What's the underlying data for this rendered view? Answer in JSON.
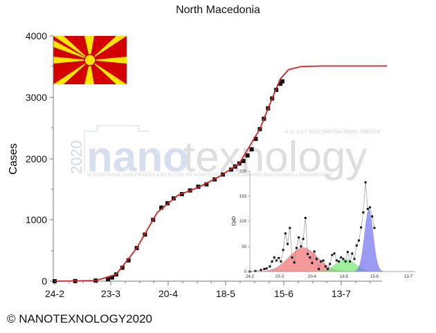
{
  "chart_data": [
    {
      "type": "line",
      "title": "North Macedonia",
      "xlabel": "",
      "ylabel": "Cases",
      "ylim": [
        0,
        4000
      ],
      "x_ticks": [
        "24-2",
        "23-3",
        "20-4",
        "18-5",
        "15-6",
        "13-7"
      ],
      "y_ticks": [
        0,
        1000,
        2000,
        3000,
        4000
      ],
      "grid": false,
      "series": [
        {
          "name": "Observed cumulative cases",
          "style": "black square markers",
          "x_day": [
            0,
            10,
            20,
            26,
            28,
            30,
            33,
            36,
            40,
            44,
            48,
            52,
            55,
            58,
            62,
            66,
            70,
            74,
            78,
            82,
            86,
            88,
            90,
            92,
            94,
            96,
            98,
            100,
            102,
            104,
            106,
            108,
            110,
            111
          ],
          "values": [
            0,
            2,
            10,
            30,
            60,
            110,
            220,
            340,
            540,
            760,
            1000,
            1200,
            1270,
            1350,
            1420,
            1480,
            1540,
            1580,
            1660,
            1740,
            1820,
            1870,
            1920,
            1960,
            2050,
            2150,
            2320,
            2480,
            2650,
            2820,
            2980,
            3120,
            3220,
            3260
          ]
        },
        {
          "name": "Fitted model",
          "style": "red line",
          "x_day": [
            0,
            20,
            30,
            40,
            50,
            60,
            70,
            80,
            90,
            100,
            106,
            110,
            114,
            120,
            130,
            140,
            150,
            162
          ],
          "values": [
            0,
            10,
            110,
            540,
            1120,
            1400,
            1530,
            1700,
            1920,
            2480,
            2980,
            3300,
            3450,
            3500,
            3510,
            3510,
            3510,
            3510
          ]
        }
      ],
      "watermark": {
        "main": "nanotexnology",
        "year": "2020",
        "tagline": "INTERNATIONAL CONFERENCES & EXHIBITION ON NANOTECHNOLOGIES, ORGANIC ELECTRONICS & NANOMEDICINE",
        "dates": "4-11 JULY 2020, THESSALONIKI, GREECE"
      },
      "flag": "North Macedonia flag (yellow sun on red)"
    },
    {
      "type": "scatter",
      "title": "",
      "xlabel": "",
      "ylabel": "CpD",
      "ylim": [
        0,
        200
      ],
      "x_ticks": [
        "24-2",
        "23-3",
        "20-4",
        "18-5",
        "15-6",
        "13-7"
      ],
      "y_ticks": [
        0,
        50,
        100,
        150,
        200
      ],
      "series": [
        {
          "name": "Daily cases",
          "style": "black square markers joined by grey line",
          "x_day": [
            0,
            5,
            10,
            13,
            15,
            18,
            20,
            22,
            24,
            26,
            28,
            30,
            32,
            34,
            36,
            38,
            40,
            42,
            44,
            46,
            48,
            50,
            52,
            54,
            56,
            58,
            60,
            62,
            64,
            66,
            68,
            70,
            72,
            74,
            76,
            78,
            80,
            82,
            84,
            86,
            88,
            90,
            92,
            94,
            96,
            98,
            100,
            102,
            104,
            106,
            108,
            110,
            112
          ],
          "values": [
            0,
            1,
            3,
            5,
            6,
            10,
            20,
            28,
            22,
            27,
            20,
            43,
            76,
            55,
            87,
            28,
            18,
            47,
            68,
            50,
            65,
            107,
            35,
            28,
            17,
            40,
            25,
            5,
            20,
            22,
            10,
            5,
            15,
            33,
            36,
            22,
            20,
            28,
            25,
            20,
            39,
            20,
            36,
            25,
            52,
            62,
            88,
            118,
            178,
            125,
            128,
            110,
            87
          ]
        },
        {
          "name": "Peak 1 (Gaussian fit)",
          "color": "#f08080",
          "center_day": 48,
          "height": 48
        },
        {
          "name": "Peak 2 (Gaussian fit)",
          "color": "#80f080",
          "center_day": 86,
          "height": 25
        },
        {
          "name": "Peak 3 (Gaussian fit)",
          "color": "#8080f0",
          "center_day": 107,
          "height": 125
        }
      ]
    }
  ],
  "page": {
    "title": "North Macedonia",
    "ylabel": "Cases",
    "credit": "© NANOTEXNOLOGY2020",
    "inset_ylabel": "CpD",
    "wm_main_blue": "nano",
    "wm_main_grey": "texnology",
    "wm_year": "2020",
    "wm_dates": "4-11 JULY 2020, THESSALONIKI, GREECE",
    "wm_tagline": "INTERNATIONAL CONFERENCES & EXHIBITION ON NANOTECHNOLOGIES, ORGANIC ELECTRONICS & NANOMEDICINE",
    "xticks": [
      "24-2",
      "23-3",
      "20-4",
      "18-5",
      "15-6",
      "13-7"
    ],
    "yticks": [
      "0",
      "1000",
      "2000",
      "3000",
      "4000"
    ],
    "inset_yticks": [
      "0",
      "50",
      "100",
      "150",
      "200"
    ]
  }
}
